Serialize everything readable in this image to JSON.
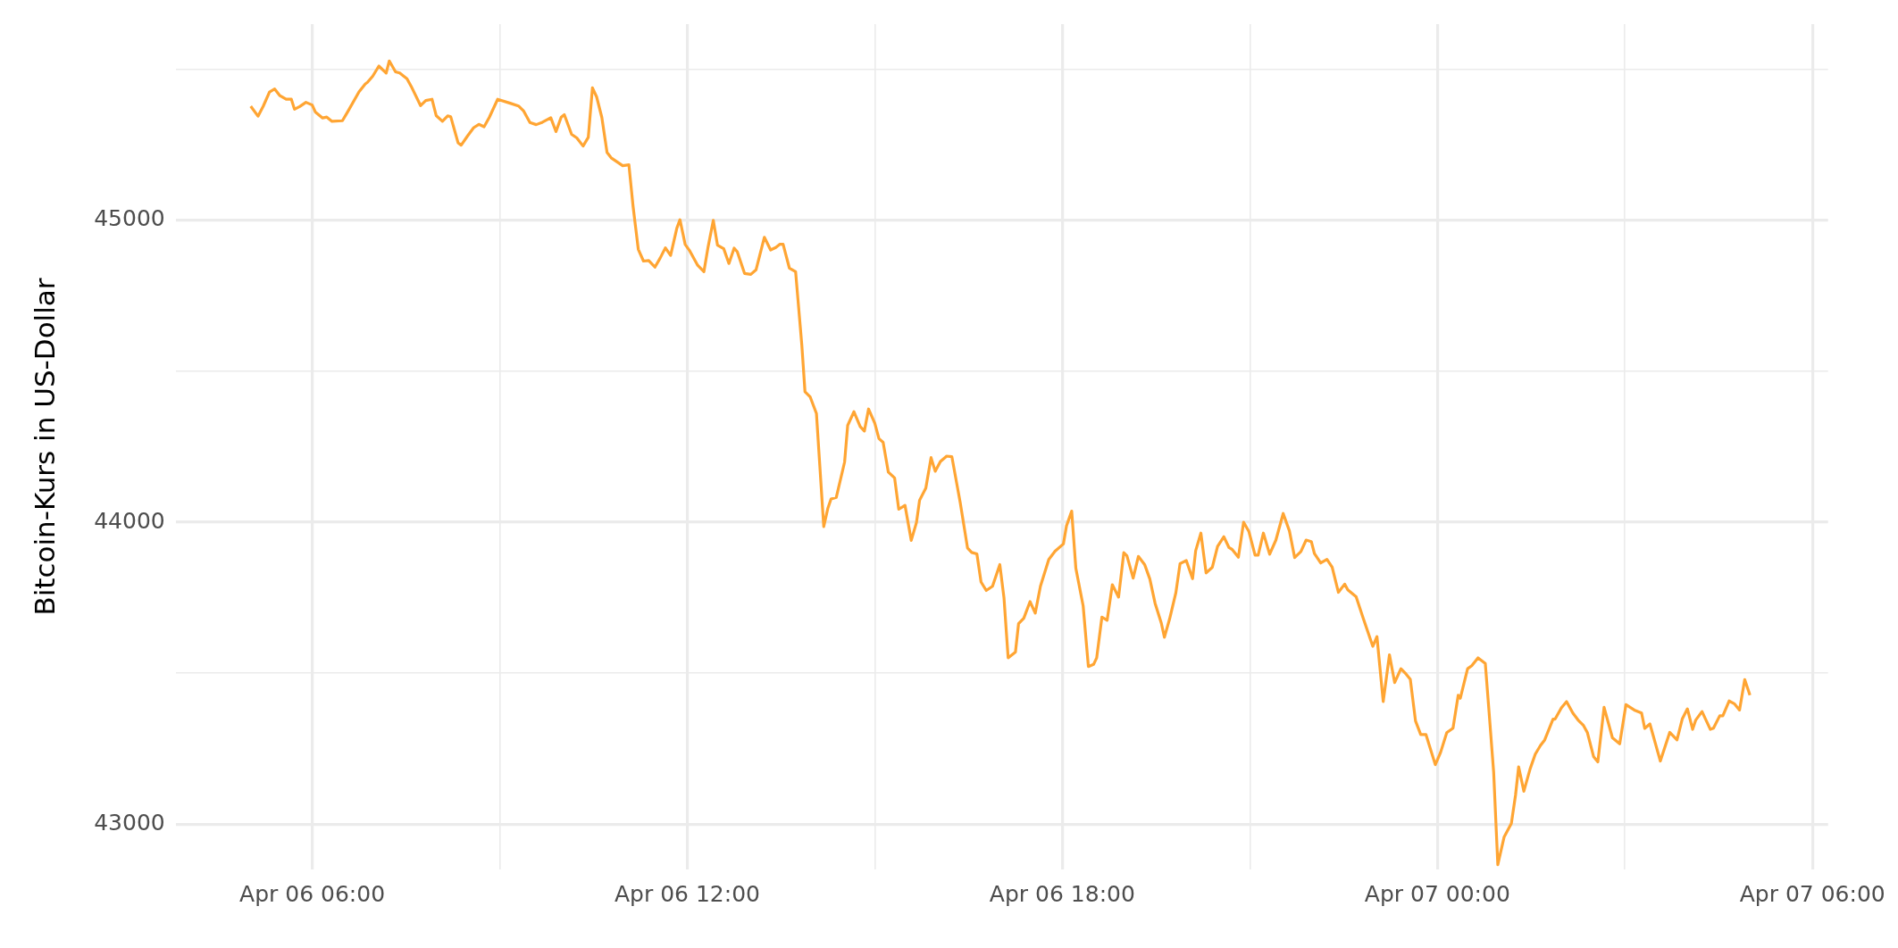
{
  "chart_data": {
    "type": "line",
    "ylabel": "Bitcoin-Kurs in US-Dollar",
    "grid": true,
    "xlim": [
      "--04-06T03:49",
      "--04-07T06:15"
    ],
    "xticks": [
      {
        "value": "--04-06T06:00",
        "label": "Apr 06 06:00"
      },
      {
        "value": "--04-06T09:00",
        "label": null
      },
      {
        "value": "--04-06T12:00",
        "label": "Apr 06 12:00"
      },
      {
        "value": "--04-06T15:00",
        "label": null
      },
      {
        "value": "--04-06T18:00",
        "label": "Apr 06 18:00"
      },
      {
        "value": "--04-06T21:00",
        "label": null
      },
      {
        "value": "--04-07T00:00",
        "label": "Apr 07 00:00"
      },
      {
        "value": "--04-07T03:00",
        "label": null
      },
      {
        "value": "--04-07T06:00",
        "label": "Apr 07 06:00"
      }
    ],
    "ylim": [
      42850,
      45650
    ],
    "yticks": [
      43000,
      {
        "value": 43500,
        "label": null
      },
      44000,
      {
        "value": 44500,
        "label": null
      },
      45000,
      {
        "value": 45500,
        "label": null
      }
    ],
    "series": [
      {
        "color": "#ffa533",
        "x": [
          "--04-06T05:01",
          "--04-06T05:08",
          "--04-06T05:13",
          "--04-06T05:19",
          "--04-06T05:24",
          "--04-06T05:29",
          "--04-06T05:35",
          "--04-06T05:40",
          "--04-06T05:43",
          "--04-06T05:48",
          "--04-06T05:54",
          "--04-06T06:00",
          "--04-06T06:03",
          "--04-06T06:10",
          "--04-06T06:14",
          "--04-06T06:19",
          "--04-06T06:29",
          "--04-06T06:34",
          "--04-06T06:45",
          "--04-06T06:51",
          "--04-06T06:53",
          "--04-06T06:58",
          "--04-06T07:04",
          "--04-06T07:11",
          "--04-06T07:14",
          "--04-06T07:20",
          "--04-06T07:24",
          "--04-06T07:31",
          "--04-06T07:35",
          "--04-06T07:44",
          "--04-06T07:49",
          "--04-06T07:55",
          "--04-06T07:59",
          "--04-06T08:05",
          "--04-06T08:10",
          "--04-06T08:13",
          "--04-06T08:20",
          "--04-06T08:23",
          "--04-06T08:29",
          "--04-06T08:35",
          "--04-06T08:40",
          "--04-06T08:45",
          "--04-06T08:50",
          "--04-06T08:58",
          "--04-06T09:10",
          "--04-06T09:18",
          "--04-06T09:23",
          "--04-06T09:29",
          "--04-06T09:35",
          "--04-06T09:41",
          "--04-06T09:49",
          "--04-06T09:54",
          "--04-06T09:59",
          "--04-06T10:02",
          "--04-06T10:09",
          "--04-06T10:14",
          "--04-06T10:20",
          "--04-06T10:25",
          "--04-06T10:29",
          "--04-06T10:33",
          "--04-06T10:38",
          "--04-06T10:43",
          "--04-06T10:47",
          "--04-06T10:53",
          "--04-06T10:58",
          "--04-06T11:04",
          "--04-06T11:08",
          "--04-06T11:13",
          "--04-06T11:18",
          "--04-06T11:23",
          "--04-06T11:29",
          "--04-06T11:34",
          "--04-06T11:39",
          "--04-06T11:44",
          "--04-06T11:50",
          "--04-06T11:53",
          "--04-06T11:58",
          "--04-06T12:02",
          "--04-06T12:10",
          "--04-06T12:16",
          "--04-06T12:20",
          "--04-06T12:25",
          "--04-06T12:29",
          "--04-06T12:35",
          "--04-06T12:40",
          "--04-06T12:45",
          "--04-06T12:48",
          "--04-06T12:55",
          "--04-06T13:01",
          "--04-06T13:06",
          "--04-06T13:14",
          "--04-06T13:20",
          "--04-06T13:25",
          "--04-06T13:29",
          "--04-06T13:32",
          "--04-06T13:38",
          "--04-06T13:44",
          "--04-06T13:50",
          "--04-06T13:53",
          "--04-06T13:58",
          "--04-06T14:04",
          "--04-06T14:11",
          "--04-06T14:15",
          "--04-06T14:18",
          "--04-06T14:23",
          "--04-06T14:31",
          "--04-06T14:34",
          "--04-06T14:40",
          "--04-06T14:46",
          "--04-06T14:50",
          "--04-06T14:54",
          "--04-06T15:00",
          "--04-06T15:04",
          "--04-06T15:08",
          "--04-06T15:13",
          "--04-06T15:19",
          "--04-06T15:23",
          "--04-06T15:29",
          "--04-06T15:35",
          "--04-06T15:40",
          "--04-06T15:43",
          "--04-06T15:49",
          "--04-06T15:54",
          "--04-06T15:58",
          "--04-06T16:03",
          "--04-06T16:09",
          "--04-06T16:14",
          "--04-06T16:22",
          "--04-06T16:29",
          "--04-06T16:33",
          "--04-06T16:38",
          "--04-06T16:42",
          "--04-06T16:47",
          "--04-06T16:53",
          "--04-06T17:00",
          "--04-06T17:04",
          "--04-06T17:08",
          "--04-06T17:15",
          "--04-06T17:18",
          "--04-06T17:23",
          "--04-06T17:29",
          "--04-06T17:34",
          "--04-06T17:39",
          "--04-06T17:47",
          "--04-06T17:53",
          "--04-06T18:01",
          "--04-06T18:04",
          "--04-06T18:09",
          "--04-06T18:13",
          "--04-06T18:20",
          "--04-06T18:25",
          "--04-06T18:30",
          "--04-06T18:33",
          "--04-06T18:38",
          "--04-06T18:43",
          "--04-06T18:48",
          "--04-06T18:54",
          "--04-06T18:59",
          "--04-06T19:02",
          "--04-06T19:08",
          "--04-06T19:13",
          "--04-06T19:19",
          "--04-06T19:24",
          "--04-06T19:29",
          "--04-06T19:35",
          "--04-06T19:38",
          "--04-06T19:43",
          "--04-06T19:49",
          "--04-06T19:53",
          "--04-06T19:59",
          "--04-06T20:05",
          "--04-06T20:08",
          "--04-06T20:13",
          "--04-06T20:18",
          "--04-06T20:24",
          "--04-06T20:29",
          "--04-06T20:35",
          "--04-06T20:40",
          "--04-06T20:43",
          "--04-06T20:49",
          "--04-06T20:54",
          "--04-06T20:59",
          "--04-06T21:05",
          "--04-06T21:08",
          "--04-06T21:13",
          "--04-06T21:19",
          "--04-06T21:25",
          "--04-06T21:32",
          "--04-06T21:38",
          "--04-06T21:43",
          "--04-06T21:49",
          "--04-06T21:54",
          "--04-06T21:59",
          "--04-06T22:02",
          "--04-06T22:08",
          "--04-06T22:14",
          "--04-06T22:19",
          "--04-06T22:25",
          "--04-06T22:31",
          "--04-06T22:34",
          "--04-06T22:42",
          "--04-06T22:49",
          "--04-06T22:58",
          "--04-06T23:02",
          "--04-06T23:08",
          "--04-06T23:14",
          "--04-06T23:19",
          "--04-06T23:25",
          "--04-06T23:30",
          "--04-06T23:34",
          "--04-06T23:39",
          "--04-06T23:44",
          "--04-06T23:49",
          "--04-06T23:58",
          "--04-07T00:03",
          "--04-07T00:09",
          "--04-07T00:15",
          "--04-07T00:20",
          "--04-07T00:22",
          "--04-07T00:29",
          "--04-07T00:33",
          "--04-07T00:39",
          "--04-07T00:46",
          "--04-07T00:49",
          "--04-07T00:54",
          "--04-07T00:58",
          "--04-07T01:04",
          "--04-07T01:11",
          "--04-07T01:15",
          "--04-07T01:18",
          "--04-07T01:23",
          "--04-07T01:29",
          "--04-07T01:34",
          "--04-07T01:39",
          "--04-07T01:43",
          "--04-07T01:51",
          "--04-07T01:53",
          "--04-07T01:59",
          "--04-07T02:04",
          "--04-07T02:10",
          "--04-07T02:15",
          "--04-07T02:20",
          "--04-07T02:24",
          "--04-07T02:30",
          "--04-07T02:34",
          "--04-07T02:40",
          "--04-07T02:48",
          "--04-07T02:55",
          "--04-07T03:01",
          "--04-07T03:09",
          "--04-07T03:16",
          "--04-07T03:19",
          "--04-07T03:24",
          "--04-07T03:34",
          "--04-07T03:43",
          "--04-07T03:50",
          "--04-07T03:55",
          "--04-07T04:00",
          "--04-07T04:05",
          "--04-07T04:08",
          "--04-07T04:14",
          "--04-07T04:22",
          "--04-07T04:25",
          "--04-07T04:31",
          "--04-07T04:34",
          "--04-07T04:40",
          "--04-07T04:45",
          "--04-07T04:50",
          "--04-07T04:55",
          "--04-07T05:00"
        ],
        "values": [
          45378,
          45345,
          45378,
          45425,
          45435,
          45413,
          45401,
          45401,
          45368,
          45377,
          45391,
          45382,
          45359,
          45339,
          45342,
          45328,
          45330,
          45359,
          45426,
          45452,
          45457,
          45477,
          45511,
          45488,
          45528,
          45492,
          45488,
          45469,
          45444,
          45380,
          45397,
          45401,
          45347,
          45328,
          45346,
          45343,
          45257,
          45249,
          45279,
          45307,
          45318,
          45310,
          45341,
          45401,
          45388,
          45379,
          45362,
          45324,
          45317,
          45325,
          45340,
          45294,
          45342,
          45350,
          45285,
          45273,
          45246,
          45275,
          45439,
          45409,
          45341,
          45225,
          45207,
          45193,
          45181,
          45184,
          45046,
          44904,
          44865,
          44867,
          44845,
          44875,
          44909,
          44884,
          44974,
          45002,
          44920,
          44901,
          44851,
          44830,
          44912,
          45000,
          44918,
          44906,
          44857,
          44908,
          44896,
          44824,
          44821,
          44836,
          44944,
          44902,
          44910,
          44921,
          44921,
          44842,
          44830,
          44585,
          44432,
          44415,
          44360,
          43986,
          44047,
          44077,
          44082,
          44199,
          44321,
          44366,
          44317,
          44302,
          44375,
          44328,
          44277,
          44265,
          44166,
          44147,
          44043,
          44056,
          43940,
          43999,
          44073,
          44113,
          44214,
          44169,
          44201,
          44219,
          44217,
          44065,
          43915,
          43900,
          43895,
          43802,
          43774,
          43788,
          43860,
          43750,
          43551,
          43570,
          43664,
          43682,
          43737,
          43699,
          43788,
          43877,
          43904,
          43928,
          43988,
          44037,
          43847,
          43723,
          43522,
          43529,
          43551,
          43686,
          43675,
          43793,
          43752,
          43899,
          43889,
          43815,
          43887,
          43860,
          43812,
          43732,
          43666,
          43619,
          43680,
          43767,
          43863,
          43873,
          43813,
          43906,
          43964,
          43832,
          43851,
          43920,
          43952,
          43916,
          43910,
          43884,
          44000,
          43970,
          43891,
          43891,
          43964,
          43894,
          43941,
          44029,
          43971,
          43883,
          43903,
          43941,
          43936,
          43896,
          43865,
          43877,
          43851,
          43768,
          43795,
          43776,
          43753,
          43680,
          43589,
          43621,
          43406,
          43561,
          43469,
          43515,
          43497,
          43480,
          43342,
          43297,
          43297,
          43197,
          43237,
          43303,
          43318,
          43427,
          43417,
          43515,
          43525,
          43551,
          43532,
          43399,
          43173,
          42866,
          42957,
          43002,
          43096,
          43190,
          43109,
          43183,
          43232,
          43261,
          43279,
          43348,
          43348,
          43385,
          43406,
          43368,
          43345,
          43328,
          43303,
          43223,
          43206,
          43387,
          43286,
          43266,
          43396,
          43378,
          43368,
          43317,
          43332,
          43209,
          43304,
          43279,
          43348,
          43382,
          43314,
          43345,
          43373,
          43314,
          43318,
          43359,
          43359,
          43408,
          43399,
          43378,
          43479,
          43427
        ]
      }
    ]
  }
}
